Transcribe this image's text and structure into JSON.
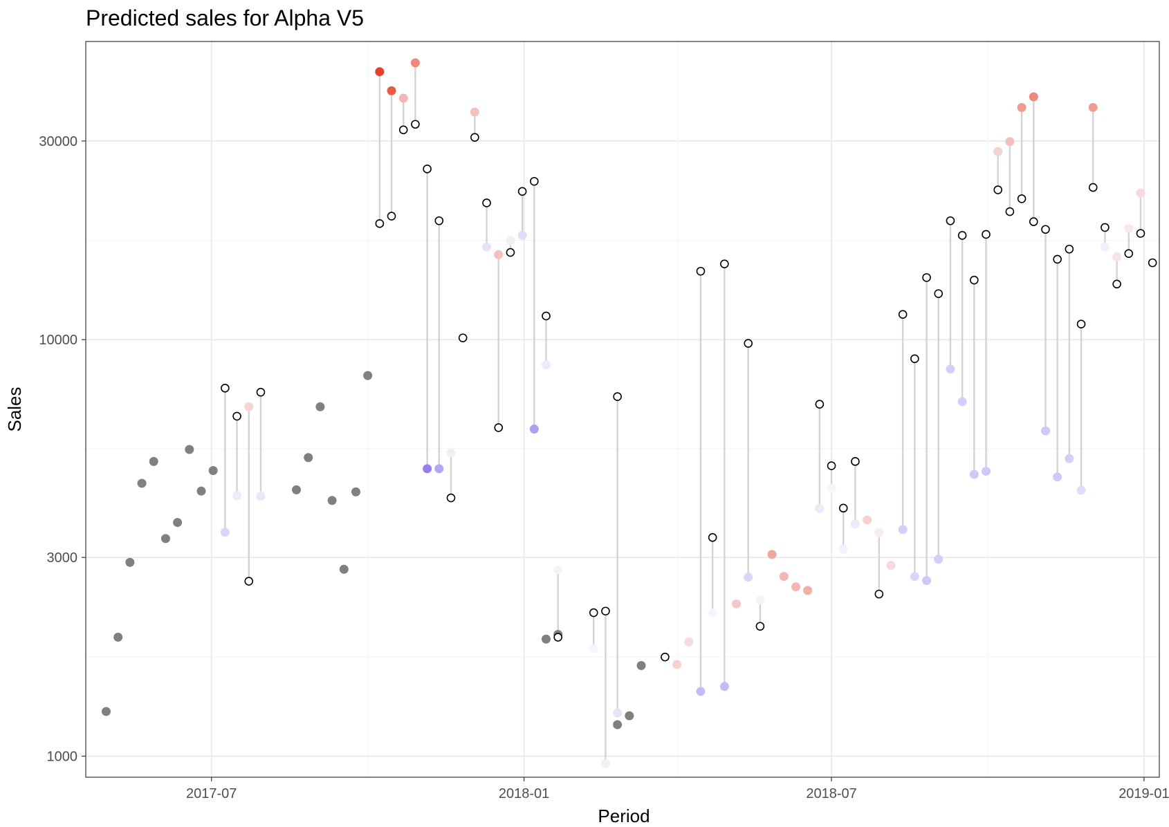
{
  "chart_data": {
    "type": "scatter",
    "title": "Predicted sales for Alpha V5",
    "xlabel": "Period",
    "ylabel": "Sales",
    "y_scale": "log",
    "ylim": [
      890,
      52000
    ],
    "xlim": [
      "2017-04-18",
      "2019-01-10"
    ],
    "grid": true,
    "legend": "none",
    "x_ticks": [
      "2017-07-01",
      "2018-01-01",
      "2018-07-01",
      "2019-01-01"
    ],
    "x_tick_labels": [
      "2017-07",
      "2018-01",
      "2018-07",
      "2019-01"
    ],
    "y_ticks": [
      1000,
      3000,
      10000,
      30000
    ],
    "y_tick_labels": [
      "1000",
      "3000",
      "10000",
      "30000"
    ],
    "colors": {
      "history": "#808080",
      "segment": "#d3d3d3",
      "over_max": "#e8412b",
      "under_max": "#8a72ee",
      "neutral": "#f7f6fc",
      "actual_outline": "#000000"
    },
    "history": [
      {
        "x": "2017-04-30",
        "y": 1280
      },
      {
        "x": "2017-05-07",
        "y": 1930
      },
      {
        "x": "2017-05-14",
        "y": 2920
      },
      {
        "x": "2017-05-21",
        "y": 4520
      },
      {
        "x": "2017-05-28",
        "y": 5100
      },
      {
        "x": "2017-06-04",
        "y": 3330
      },
      {
        "x": "2017-06-11",
        "y": 3640
      },
      {
        "x": "2017-06-18",
        "y": 5450
      },
      {
        "x": "2017-06-25",
        "y": 4330
      },
      {
        "x": "2017-07-02",
        "y": 4850
      },
      {
        "x": "2017-08-20",
        "y": 4360
      },
      {
        "x": "2017-08-27",
        "y": 5210
      },
      {
        "x": "2017-09-03",
        "y": 6900
      },
      {
        "x": "2017-09-10",
        "y": 4110
      },
      {
        "x": "2017-09-17",
        "y": 2810
      },
      {
        "x": "2017-09-24",
        "y": 4310
      },
      {
        "x": "2017-10-01",
        "y": 8200
      },
      {
        "x": "2018-01-14",
        "y": 1910
      },
      {
        "x": "2018-01-21",
        "y": 1960
      },
      {
        "x": "2018-02-25",
        "y": 1190
      },
      {
        "x": "2018-03-04",
        "y": 1250
      },
      {
        "x": "2018-03-11",
        "y": 1650
      }
    ],
    "predictions": [
      {
        "x": "2017-07-09",
        "predicted": 3450,
        "actual": 7650,
        "score": -0.25
      },
      {
        "x": "2017-07-16",
        "predicted": 4220,
        "actual": 6550,
        "score": -0.08
      },
      {
        "x": "2017-07-23",
        "predicted": 6900,
        "actual": 2630,
        "score": 0.18
      },
      {
        "x": "2017-07-30",
        "predicted": 4210,
        "actual": 7480,
        "score": -0.12
      },
      {
        "x": "2017-10-08",
        "predicted": 44000,
        "actual": 19000,
        "score": 1.0
      },
      {
        "x": "2017-10-15",
        "predicted": 39600,
        "actual": 19800,
        "score": 0.85
      },
      {
        "x": "2017-10-22",
        "predicted": 38000,
        "actual": 31900,
        "score": 0.35
      },
      {
        "x": "2017-10-29",
        "predicted": 46200,
        "actual": 32900,
        "score": 0.6
      },
      {
        "x": "2017-11-05",
        "predicted": 4900,
        "actual": 25700,
        "score": -0.9
      },
      {
        "x": "2017-11-12",
        "predicted": 4900,
        "actual": 19300,
        "score": -0.6
      },
      {
        "x": "2017-11-19",
        "predicted": 5350,
        "actual": 4170,
        "score": 0.05
      },
      {
        "x": "2017-11-26",
        "predicted": null,
        "actual": 10100,
        "score": 0
      },
      {
        "x": "2017-12-03",
        "predicted": 35200,
        "actual": 30600,
        "score": 0.3
      },
      {
        "x": "2017-12-10",
        "predicted": 16700,
        "actual": 21300,
        "score": -0.15
      },
      {
        "x": "2017-12-17",
        "predicted": 16000,
        "actual": 6150,
        "score": 0.3
      },
      {
        "x": "2017-12-24",
        "predicted": 17300,
        "actual": 16200,
        "score": 0.05
      },
      {
        "x": "2017-12-31",
        "predicted": 17800,
        "actual": 22700,
        "score": -0.2
      },
      {
        "x": "2018-01-07",
        "predicted": 6100,
        "actual": 24000,
        "score": -0.65
      },
      {
        "x": "2018-01-14",
        "predicted": 8700,
        "actual": 11400,
        "score": -0.1
      },
      {
        "x": "2018-01-21",
        "predicted": 2800,
        "actual": 1930,
        "score": 0.02
      },
      {
        "x": "2018-02-11",
        "predicted": 1810,
        "actual": 2210,
        "score": -0.02
      },
      {
        "x": "2018-02-18",
        "predicted": 960,
        "actual": 2230,
        "score": -0.05
      },
      {
        "x": "2018-02-25",
        "predicted": 1270,
        "actual": 7300,
        "score": -0.15
      },
      {
        "x": "2018-03-25",
        "predicted": null,
        "actual": 1730,
        "score": 0
      },
      {
        "x": "2018-04-01",
        "predicted": 1660,
        "actual": null,
        "score": 0.2
      },
      {
        "x": "2018-04-08",
        "predicted": 1880,
        "actual": null,
        "score": 0.15
      },
      {
        "x": "2018-04-15",
        "predicted": 1430,
        "actual": 14600,
        "score": -0.45
      },
      {
        "x": "2018-04-22",
        "predicted": 2210,
        "actual": 3350,
        "score": -0.02
      },
      {
        "x": "2018-04-29",
        "predicted": 1470,
        "actual": 15200,
        "score": -0.45
      },
      {
        "x": "2018-05-06",
        "predicted": 2320,
        "actual": null,
        "score": 0.25
      },
      {
        "x": "2018-05-13",
        "predicted": 2690,
        "actual": 9800,
        "score": -0.25
      },
      {
        "x": "2018-05-20",
        "predicted": 2370,
        "actual": 2050,
        "score": 0.02
      },
      {
        "x": "2018-05-27",
        "predicted": 3050,
        "actual": null,
        "score": 0.45
      },
      {
        "x": "2018-06-03",
        "predicted": 2700,
        "actual": null,
        "score": 0.35
      },
      {
        "x": "2018-06-10",
        "predicted": 2550,
        "actual": null,
        "score": 0.35
      },
      {
        "x": "2018-06-17",
        "predicted": 2500,
        "actual": null,
        "score": 0.4
      },
      {
        "x": "2018-06-24",
        "predicted": 3930,
        "actual": 7000,
        "score": -0.1
      },
      {
        "x": "2018-07-01",
        "predicted": 4400,
        "actual": 4980,
        "score": -0.02
      },
      {
        "x": "2018-07-08",
        "predicted": 3140,
        "actual": 3940,
        "score": -0.04
      },
      {
        "x": "2018-07-15",
        "predicted": 3610,
        "actual": 5100,
        "score": -0.1
      },
      {
        "x": "2018-07-22",
        "predicted": 3690,
        "actual": null,
        "score": 0.2
      },
      {
        "x": "2018-07-29",
        "predicted": 3440,
        "actual": 2450,
        "score": 0.05
      },
      {
        "x": "2018-08-05",
        "predicted": 2870,
        "actual": null,
        "score": 0.15
      },
      {
        "x": "2018-08-12",
        "predicted": 3500,
        "actual": 11500,
        "score": -0.3
      },
      {
        "x": "2018-08-19",
        "predicted": 2700,
        "actual": 9000,
        "score": -0.25
      },
      {
        "x": "2018-08-26",
        "predicted": 2640,
        "actual": 14100,
        "score": -0.35
      },
      {
        "x": "2018-09-02",
        "predicted": 2970,
        "actual": 12900,
        "score": -0.3
      },
      {
        "x": "2018-09-09",
        "predicted": 8500,
        "actual": 19300,
        "score": -0.3
      },
      {
        "x": "2018-09-16",
        "predicted": 7100,
        "actual": 17800,
        "score": -0.3
      },
      {
        "x": "2018-09-23",
        "predicted": 4750,
        "actual": 13900,
        "score": -0.35
      },
      {
        "x": "2018-09-30",
        "predicted": 4830,
        "actual": 17900,
        "score": -0.35
      },
      {
        "x": "2018-10-07",
        "predicted": 28300,
        "actual": 22900,
        "score": 0.2
      },
      {
        "x": "2018-10-14",
        "predicted": 29900,
        "actual": 20300,
        "score": 0.3
      },
      {
        "x": "2018-10-21",
        "predicted": 36100,
        "actual": 21800,
        "score": 0.5
      },
      {
        "x": "2018-10-28",
        "predicted": 38300,
        "actual": 19200,
        "score": 0.6
      },
      {
        "x": "2018-11-04",
        "predicted": 6040,
        "actual": 18400,
        "score": -0.35
      },
      {
        "x": "2018-11-11",
        "predicted": 4680,
        "actual": 15600,
        "score": -0.35
      },
      {
        "x": "2018-11-18",
        "predicted": 5180,
        "actual": 16500,
        "score": -0.3
      },
      {
        "x": "2018-11-25",
        "predicted": 4350,
        "actual": 10900,
        "score": -0.2
      },
      {
        "x": "2018-12-02",
        "predicted": 36100,
        "actual": 23200,
        "score": 0.5
      },
      {
        "x": "2018-12-09",
        "predicted": 16700,
        "actual": 18600,
        "score": -0.05
      },
      {
        "x": "2018-12-16",
        "predicted": 15800,
        "actual": 13600,
        "score": 0.1
      },
      {
        "x": "2018-12-23",
        "predicted": 18500,
        "actual": 16100,
        "score": 0.08
      },
      {
        "x": "2018-12-30",
        "predicted": 22500,
        "actual": 18000,
        "score": 0.15
      },
      {
        "x": "2019-01-06",
        "predicted": null,
        "actual": 15300,
        "score": 0
      }
    ]
  }
}
